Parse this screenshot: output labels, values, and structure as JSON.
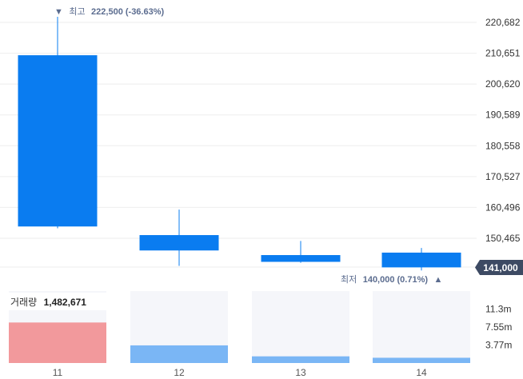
{
  "chart_data": {
    "type": "candlestick",
    "price_axis": {
      "ticks": [
        "220,682",
        "210,651",
        "200,620",
        "190,589",
        "180,558",
        "170,527",
        "160,496",
        "150,465"
      ],
      "tick_values": [
        220682,
        210651,
        200620,
        190589,
        180558,
        170527,
        160496,
        150465
      ]
    },
    "categories": [
      "11",
      "12",
      "13",
      "14"
    ],
    "candles": [
      {
        "x": "11",
        "open": 210000,
        "high": 222500,
        "low": 153700,
        "close": 154300,
        "direction": "down"
      },
      {
        "x": "12",
        "open": 151500,
        "high": 159800,
        "low": 141500,
        "close": 146500,
        "direction": "down"
      },
      {
        "x": "13",
        "open": 145000,
        "high": 149600,
        "low": 142500,
        "close": 142800,
        "direction": "down"
      },
      {
        "x": "14",
        "open": 145800,
        "high": 147300,
        "low": 140000,
        "close": 141000,
        "direction": "down"
      }
    ],
    "annotations": {
      "high": {
        "label": "최고",
        "value": "222,500 (-36.63%)",
        "marker": "▼"
      },
      "low": {
        "label": "최저",
        "value": "140,000 (0.71%)",
        "marker": "▲"
      }
    },
    "last_price_tag": "141,000",
    "volume": {
      "title": "거래량",
      "title_value": "1,482,671",
      "axis_ticks": [
        "11.3m",
        "7.55m",
        "3.77m"
      ],
      "axis_tick_values": [
        11300000,
        7550000,
        3770000
      ],
      "max": 15100000,
      "values": [
        8500000,
        3700000,
        1400000,
        1100000
      ],
      "highlighted_index": 0
    }
  },
  "colors": {
    "candle": "#0a7cf0",
    "volume_highlight": "#f2999c",
    "volume_bar": "#7ab6f5",
    "volume_panel_bg": "#f5f6fa",
    "grid": "#eeeeee",
    "last_tag_bg": "#3d4a63",
    "annotation": "#5b6c8f"
  }
}
